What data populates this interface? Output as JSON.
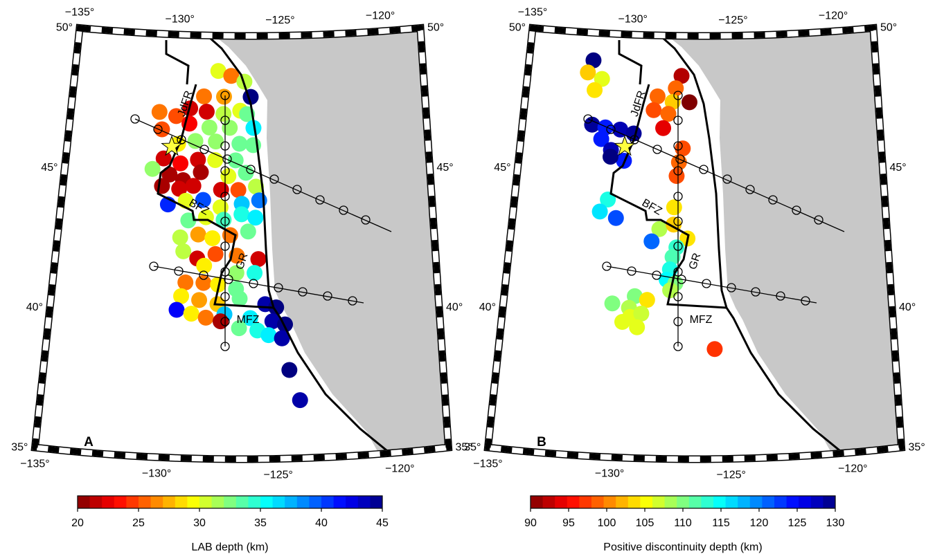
{
  "panels": [
    {
      "letter": "A",
      "colorbar": {
        "label": "LAB depth (km)",
        "lim": [
          20,
          45
        ],
        "ticks": [
          20,
          25,
          30,
          35,
          40,
          45
        ]
      },
      "map": {
        "lon_lim": [
          -135,
          -118
        ],
        "lat_lim": [
          35,
          50
        ],
        "lon_labels": [
          {
            "value": -135,
            "label": "−135°"
          },
          {
            "value": -130,
            "label": "−130°"
          },
          {
            "value": -125,
            "label": "−125°"
          },
          {
            "value": -120,
            "label": "−120°"
          }
        ],
        "lat_labels": [
          {
            "value": 50,
            "label": "50°"
          },
          {
            "value": 45,
            "label": "45°"
          },
          {
            "value": 40,
            "label": "40°"
          },
          {
            "value": 35,
            "label": "35°"
          }
        ],
        "features": [
          "JdFR",
          "BFZ",
          "GR",
          "MFZ"
        ],
        "points": {
          "lon": [
            -128.02,
            -127.38,
            -126.73,
            -126.41,
            -128.67,
            -127.7,
            -129.31,
            -128.51,
            -127.7,
            -126.9,
            -126.57,
            -130.77,
            -129.96,
            -129.31,
            -128.35,
            -127.38,
            -126.25,
            -130.6,
            -129.8,
            -128.99,
            -128.02,
            -126.9,
            -126.25,
            -130.44,
            -129.64,
            -128.83,
            -128.02,
            -127.06,
            -130.93,
            -130.12,
            -129.48,
            -128.67,
            -127.38,
            -126.57,
            -130.44,
            -129.64,
            -128.99,
            -127.7,
            -126.9,
            -126.09,
            -130.12,
            -129.31,
            -128.51,
            -127.7,
            -126.73,
            -125.93,
            -129.15,
            -128.35,
            -127.54,
            -126.73,
            -126.09,
            -129.48,
            -128.67,
            -128.02,
            -127.22,
            -126.41,
            -129.31,
            -128.67,
            -127.86,
            -126.9,
            -125.93,
            -128.35,
            -126.9,
            -126.09,
            -129.15,
            -128.35,
            -127.7,
            -126.9,
            -129.31,
            -128.51,
            -127.7,
            -126.73,
            -125.6,
            -125.12,
            -129.48,
            -128.83,
            -128.19,
            -127.38,
            -126.25,
            -125.28,
            -124.73,
            -127.54,
            -126.73,
            -125.93,
            -125.44,
            -124.86,
            -124.54,
            -124.09
          ],
          "lat": [
            48.75,
            48.58,
            48.38,
            47.84,
            47.84,
            47.84,
            47.4,
            47.3,
            47.23,
            47.35,
            47.23,
            47.23,
            47.11,
            46.86,
            46.74,
            46.74,
            46.74,
            46.62,
            46.13,
            46.25,
            46.25,
            46.18,
            46.13,
            45.59,
            45.44,
            45.59,
            45.59,
            45.59,
            45.2,
            45.03,
            44.85,
            45.15,
            45.03,
            45.15,
            44.61,
            44.54,
            44.66,
            44.54,
            44.54,
            44.66,
            43.97,
            44.12,
            44.17,
            43.92,
            44.05,
            44.17,
            43.43,
            43.56,
            43.48,
            43.68,
            43.56,
            42.82,
            42.94,
            42.82,
            42.94,
            43.07,
            42.33,
            42.09,
            42.26,
            42.21,
            42.09,
            41.84,
            41.6,
            41.6,
            41.23,
            41.23,
            41.18,
            41.03,
            40.74,
            40.62,
            40.49,
            40.69,
            40.49,
            40.37,
            40.25,
            40.13,
            40,
            40.13,
            40,
            39.88,
            39.76,
            39.88,
            39.64,
            39.56,
            39.39,
            39.27,
            38.14,
            37.06
          ],
          "values": [
            30,
            26,
            31,
            45,
            26,
            27,
            22,
            22,
            31,
            30,
            33,
            26,
            25,
            23,
            32,
            32,
            36,
            25,
            29,
            32,
            32,
            33,
            33,
            22,
            23,
            22,
            30,
            33,
            32,
            21,
            21,
            21,
            30,
            33,
            21,
            22,
            22,
            22,
            25,
            31,
            41,
            30,
            40,
            30,
            37,
            39,
            33,
            30,
            34,
            35,
            36,
            31,
            27,
            29,
            26,
            33,
            31,
            22,
            25,
            26,
            22,
            29,
            32,
            35,
            26,
            26,
            29,
            33,
            29,
            27,
            28,
            33,
            44,
            45,
            42,
            29,
            26,
            37,
            36,
            44,
            45,
            21,
            33,
            35,
            36,
            44,
            45,
            44
          ]
        }
      }
    },
    {
      "letter": "B",
      "colorbar": {
        "label": "Positive discontinuity depth (km)",
        "lim": [
          90,
          130
        ],
        "ticks": [
          90,
          95,
          100,
          105,
          110,
          115,
          120,
          125,
          130
        ]
      },
      "map": {
        "lon_lim": [
          -135,
          -118
        ],
        "lat_lim": [
          35,
          50
        ],
        "lon_labels": [
          {
            "value": -135,
            "label": "−135°"
          },
          {
            "value": -130,
            "label": "−130°"
          },
          {
            "value": -125,
            "label": "−125°"
          },
          {
            "value": -120,
            "label": "−120°"
          }
        ],
        "lat_labels": [
          {
            "value": 50,
            "label": "50°"
          },
          {
            "value": 45,
            "label": "45°"
          },
          {
            "value": 40,
            "label": "40°"
          },
          {
            "value": 35,
            "label": "35°"
          }
        ],
        "features": [
          "JdFR",
          "BFZ",
          "GR",
          "MFZ"
        ],
        "points": {
          "lon": [
            -131.86,
            -132.09,
            -131.38,
            -131.7,
            -127.51,
            -127.77,
            -128.64,
            -127.9,
            -127.09,
            -128.8,
            -128.09,
            -128.31,
            -131.7,
            -131.06,
            -130.35,
            -129.7,
            -131.22,
            -130.73,
            -130.09,
            -130.73,
            -127.35,
            -127.51,
            -127.6,
            -130.73,
            -131.06,
            -130.31,
            -127.67,
            -128.31,
            -127.67,
            -127.02,
            -128.64,
            -127.51,
            -127.67,
            -127.77,
            -127.9,
            -127.51,
            -129.28,
            -130.25,
            -129.51,
            -128.73,
            -129.44,
            -128.96,
            -129.77,
            -129.12,
            -125.73,
            -127.73
          ],
          "lat": [
            49.02,
            48.58,
            48.38,
            47.97,
            48.58,
            48.14,
            47.84,
            47.65,
            47.65,
            47.35,
            47.23,
            46.72,
            46.74,
            46.67,
            46.62,
            46.5,
            46.25,
            45.88,
            45.52,
            45.64,
            46.01,
            45.52,
            45.03,
            44.12,
            43.68,
            43.48,
            43.92,
            43.14,
            43.31,
            42.82,
            42.7,
            42.5,
            42.16,
            41.72,
            41.35,
            41.23,
            40.74,
            40.45,
            40.32,
            40.62,
            40,
            40.13,
            39.81,
            39.64,
            38.9,
            40.98
          ],
          "values": [
            130,
            103,
            106,
            104,
            92,
            99,
            99,
            103,
            90,
            98,
            99,
            94,
            129,
            124,
            128,
            129,
            124,
            128,
            124,
            130,
            98,
            99,
            98,
            114,
            116,
            122,
            104,
            108,
            103,
            104,
            121,
            113,
            112,
            114,
            115,
            110,
            110,
            110,
            108,
            104,
            106,
            107,
            106,
            106,
            97,
            108
          ]
        }
      }
    }
  ]
}
